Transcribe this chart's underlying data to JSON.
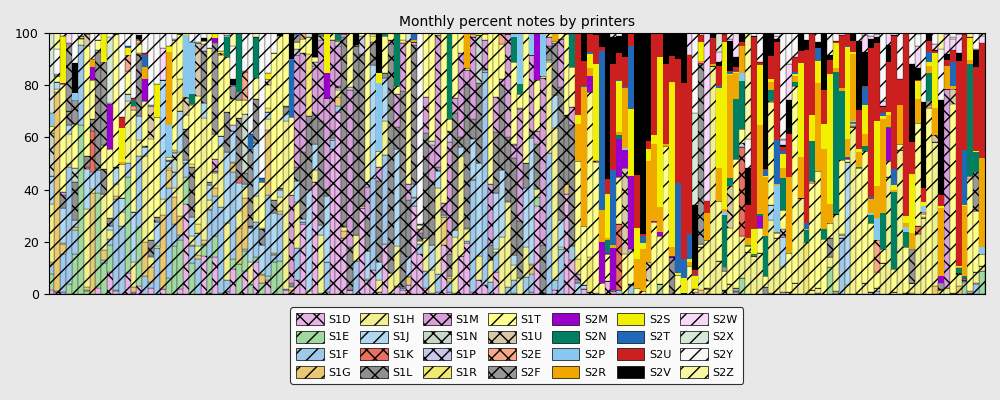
{
  "title": "Monthly percent notes by printers",
  "series": [
    {
      "name": "S1D",
      "color": "#e8b4e8",
      "hatch": "xx",
      "lw": 0.3
    },
    {
      "name": "S1E",
      "color": "#a0d8a0",
      "hatch": "//",
      "lw": 0.3
    },
    {
      "name": "S1F",
      "color": "#a0c8e8",
      "hatch": "//",
      "lw": 0.3
    },
    {
      "name": "S1G",
      "color": "#e8c870",
      "hatch": "//",
      "lw": 0.3
    },
    {
      "name": "S1H",
      "color": "#f0f090",
      "hatch": "//",
      "lw": 0.3
    },
    {
      "name": "S1J",
      "color": "#b0d8f0",
      "hatch": "//",
      "lw": 0.3
    },
    {
      "name": "S1K",
      "color": "#e87060",
      "hatch": "xx",
      "lw": 0.3
    },
    {
      "name": "S1L",
      "color": "#909090",
      "hatch": "xx",
      "lw": 0.3
    },
    {
      "name": "S1M",
      "color": "#d8a0d8",
      "hatch": "xx",
      "lw": 0.3
    },
    {
      "name": "S1N",
      "color": "#c8d8c8",
      "hatch": "xx",
      "lw": 0.3
    },
    {
      "name": "S1P",
      "color": "#c8c8e8",
      "hatch": "xx",
      "lw": 0.3
    },
    {
      "name": "S1R",
      "color": "#f0e870",
      "hatch": "//",
      "lw": 0.3
    },
    {
      "name": "S1T",
      "color": "#ffff90",
      "hatch": "//",
      "lw": 0.3
    },
    {
      "name": "S1U",
      "color": "#d8c8a8",
      "hatch": "xx",
      "lw": 0.3
    },
    {
      "name": "S2E",
      "color": "#f8a888",
      "hatch": "xx",
      "lw": 0.3
    },
    {
      "name": "S2F",
      "color": "#989898",
      "hatch": "xx",
      "lw": 0.3
    },
    {
      "name": "S2M",
      "color": "#9900cc",
      "hatch": "",
      "lw": 0.0
    },
    {
      "name": "S2N",
      "color": "#008060",
      "hatch": "",
      "lw": 0.0
    },
    {
      "name": "S2P",
      "color": "#88c8f0",
      "hatch": "",
      "lw": 0.0
    },
    {
      "name": "S2R",
      "color": "#f0a800",
      "hatch": "",
      "lw": 0.0
    },
    {
      "name": "S2S",
      "color": "#f0f000",
      "hatch": "",
      "lw": 0.0
    },
    {
      "name": "S2T",
      "color": "#2068b8",
      "hatch": "",
      "lw": 0.0
    },
    {
      "name": "S2U",
      "color": "#cc2020",
      "hatch": "",
      "lw": 0.0
    },
    {
      "name": "S2V",
      "color": "#000000",
      "hatch": "",
      "lw": 0.0
    },
    {
      "name": "S2W",
      "color": "#f8d8f8",
      "hatch": "//",
      "lw": 0.3
    },
    {
      "name": "S2X",
      "color": "#d8e8d8",
      "hatch": "//",
      "lw": 0.3
    },
    {
      "name": "S2Y",
      "color": "#f8f8f8",
      "hatch": "//",
      "lw": 0.3
    },
    {
      "name": "S2Z",
      "color": "#f8f8a0",
      "hatch": "//",
      "lw": 0.3
    }
  ],
  "n_bars": 160,
  "ylim": [
    0,
    100
  ],
  "yticks": [
    0,
    20,
    40,
    60,
    80,
    100
  ],
  "background_color": "#e8e8e8",
  "plot_bg": "#ffffff",
  "title_fontsize": 10
}
